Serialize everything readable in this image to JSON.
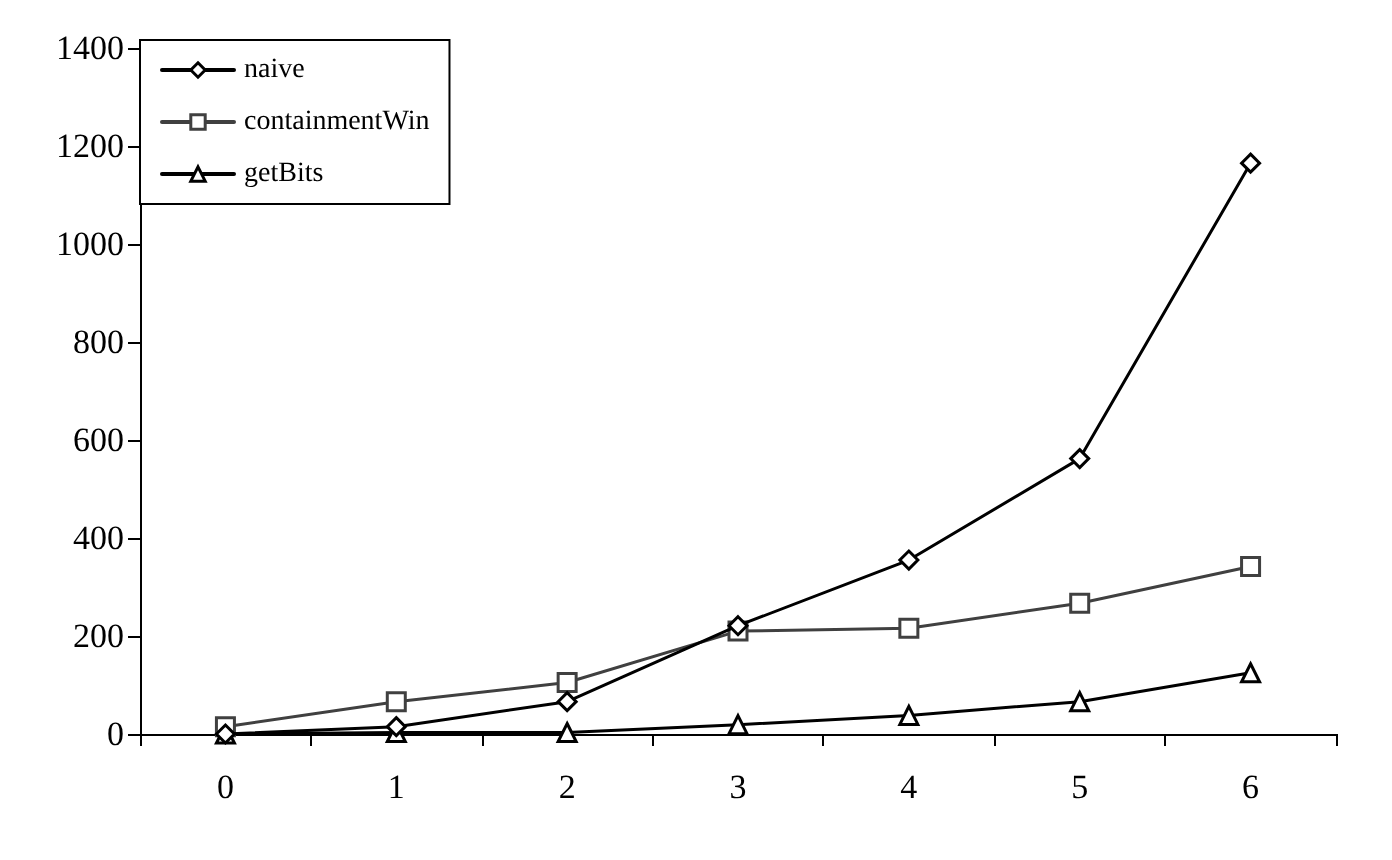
{
  "chart_data": {
    "type": "line",
    "categories": [
      "0",
      "1",
      "2",
      "3",
      "4",
      "5",
      "6"
    ],
    "series": [
      {
        "name": "naive",
        "color": "#000000",
        "marker": "diamond",
        "values": [
          0,
          15,
          66,
          221,
          355,
          562,
          1165
        ]
      },
      {
        "name": "containmentWin",
        "color": "#404040",
        "marker": "square",
        "values": [
          15,
          66,
          105,
          210,
          216,
          267,
          342
        ]
      },
      {
        "name": "getBits",
        "color": "#000000",
        "marker": "triangle",
        "values": [
          0,
          3,
          3,
          19,
          38,
          66,
          125
        ]
      }
    ],
    "ylim": [
      0,
      1400
    ],
    "yticks": [
      0,
      200,
      400,
      600,
      800,
      1000,
      1200,
      1400
    ],
    "grid": false,
    "legend": "top left",
    "line_style": "solid"
  }
}
